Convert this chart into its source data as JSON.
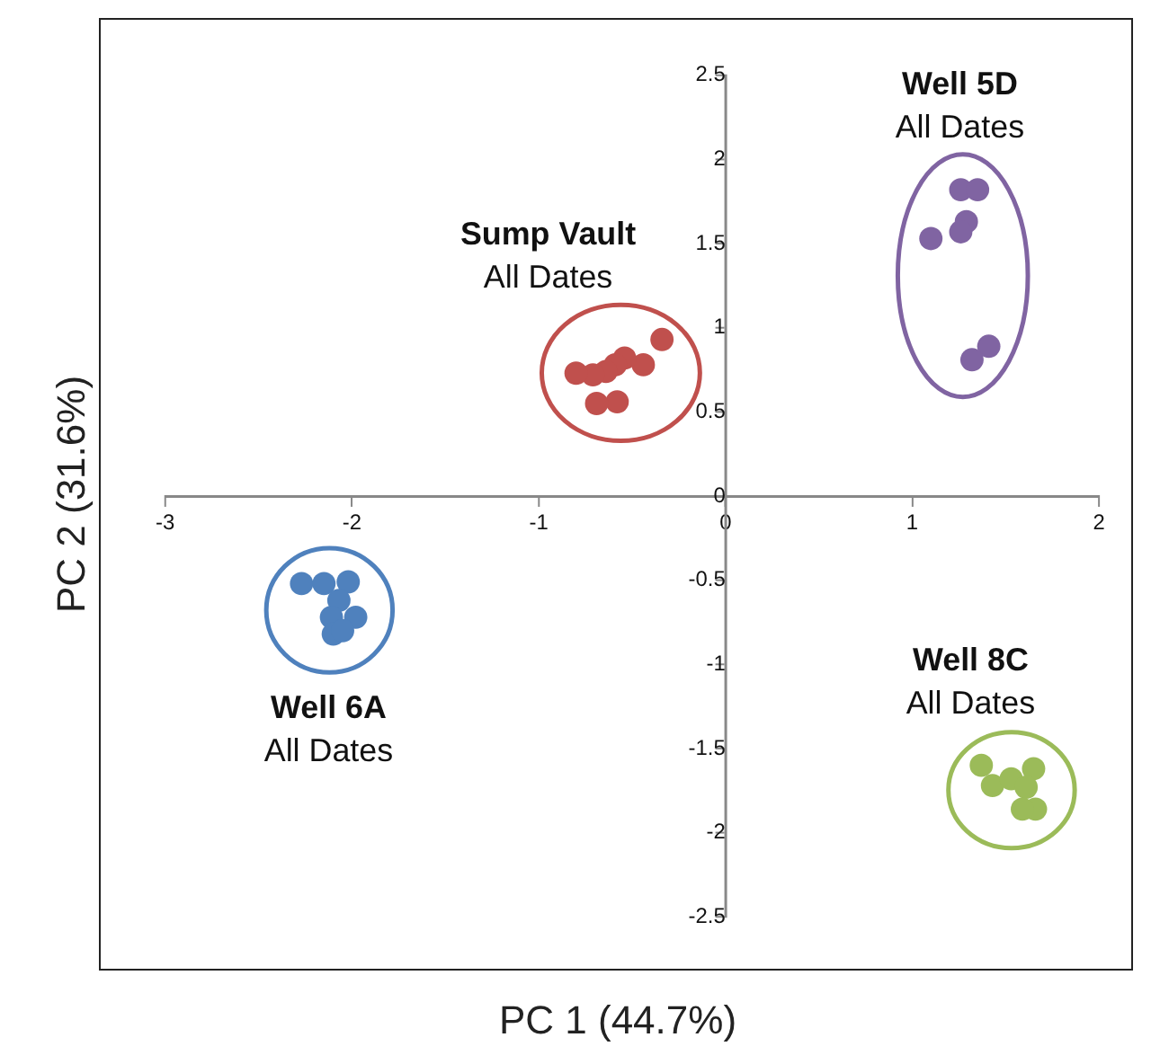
{
  "chart_data": {
    "type": "scatter",
    "xlabel": "PC 1 (44.7%)",
    "ylabel": "PC 2 (31.6%)",
    "xlim": [
      -3,
      2
    ],
    "xticks": [
      -3,
      -2,
      -1,
      0,
      1,
      2
    ],
    "ylim": [
      -2.5,
      2.5
    ],
    "yticks": [
      -2.5,
      -2,
      -1.5,
      -1,
      -0.5,
      0,
      0.5,
      1,
      1.5,
      2,
      2.5
    ],
    "marker": "circle",
    "legend": false,
    "series": [
      {
        "name": "Sump Vault",
        "color": "#c0504d",
        "x": [
          -0.34,
          -0.44,
          -0.54,
          -0.59,
          -0.64,
          -0.71,
          -0.8,
          -0.58,
          -0.69
        ],
        "values": [
          0.93,
          0.78,
          0.82,
          0.78,
          0.74,
          0.72,
          0.73,
          0.56,
          0.55
        ]
      },
      {
        "name": "Well 5D",
        "color": "#8064a2",
        "x": [
          1.26,
          1.35,
          1.29,
          1.26,
          1.1,
          1.41,
          1.32
        ],
        "values": [
          1.82,
          1.82,
          1.63,
          1.57,
          1.53,
          0.89,
          0.81
        ]
      },
      {
        "name": "Well 8C",
        "color": "#9bbb59",
        "x": [
          1.37,
          1.43,
          1.53,
          1.65,
          1.61,
          1.66,
          1.59
        ],
        "values": [
          -1.6,
          -1.72,
          -1.68,
          -1.62,
          -1.73,
          -1.86,
          -1.86
        ]
      },
      {
        "name": "Well 6A",
        "color": "#4f81bd",
        "x": [
          -2.27,
          -2.15,
          -2.02,
          -2.07,
          -2.11,
          -1.98,
          -2.1,
          -2.05
        ],
        "values": [
          -0.52,
          -0.52,
          -0.51,
          -0.62,
          -0.72,
          -0.72,
          -0.82,
          -0.8
        ]
      }
    ],
    "annotations": [
      "All Dates",
      "All Dates",
      "All Dates",
      "All Dates"
    ]
  }
}
